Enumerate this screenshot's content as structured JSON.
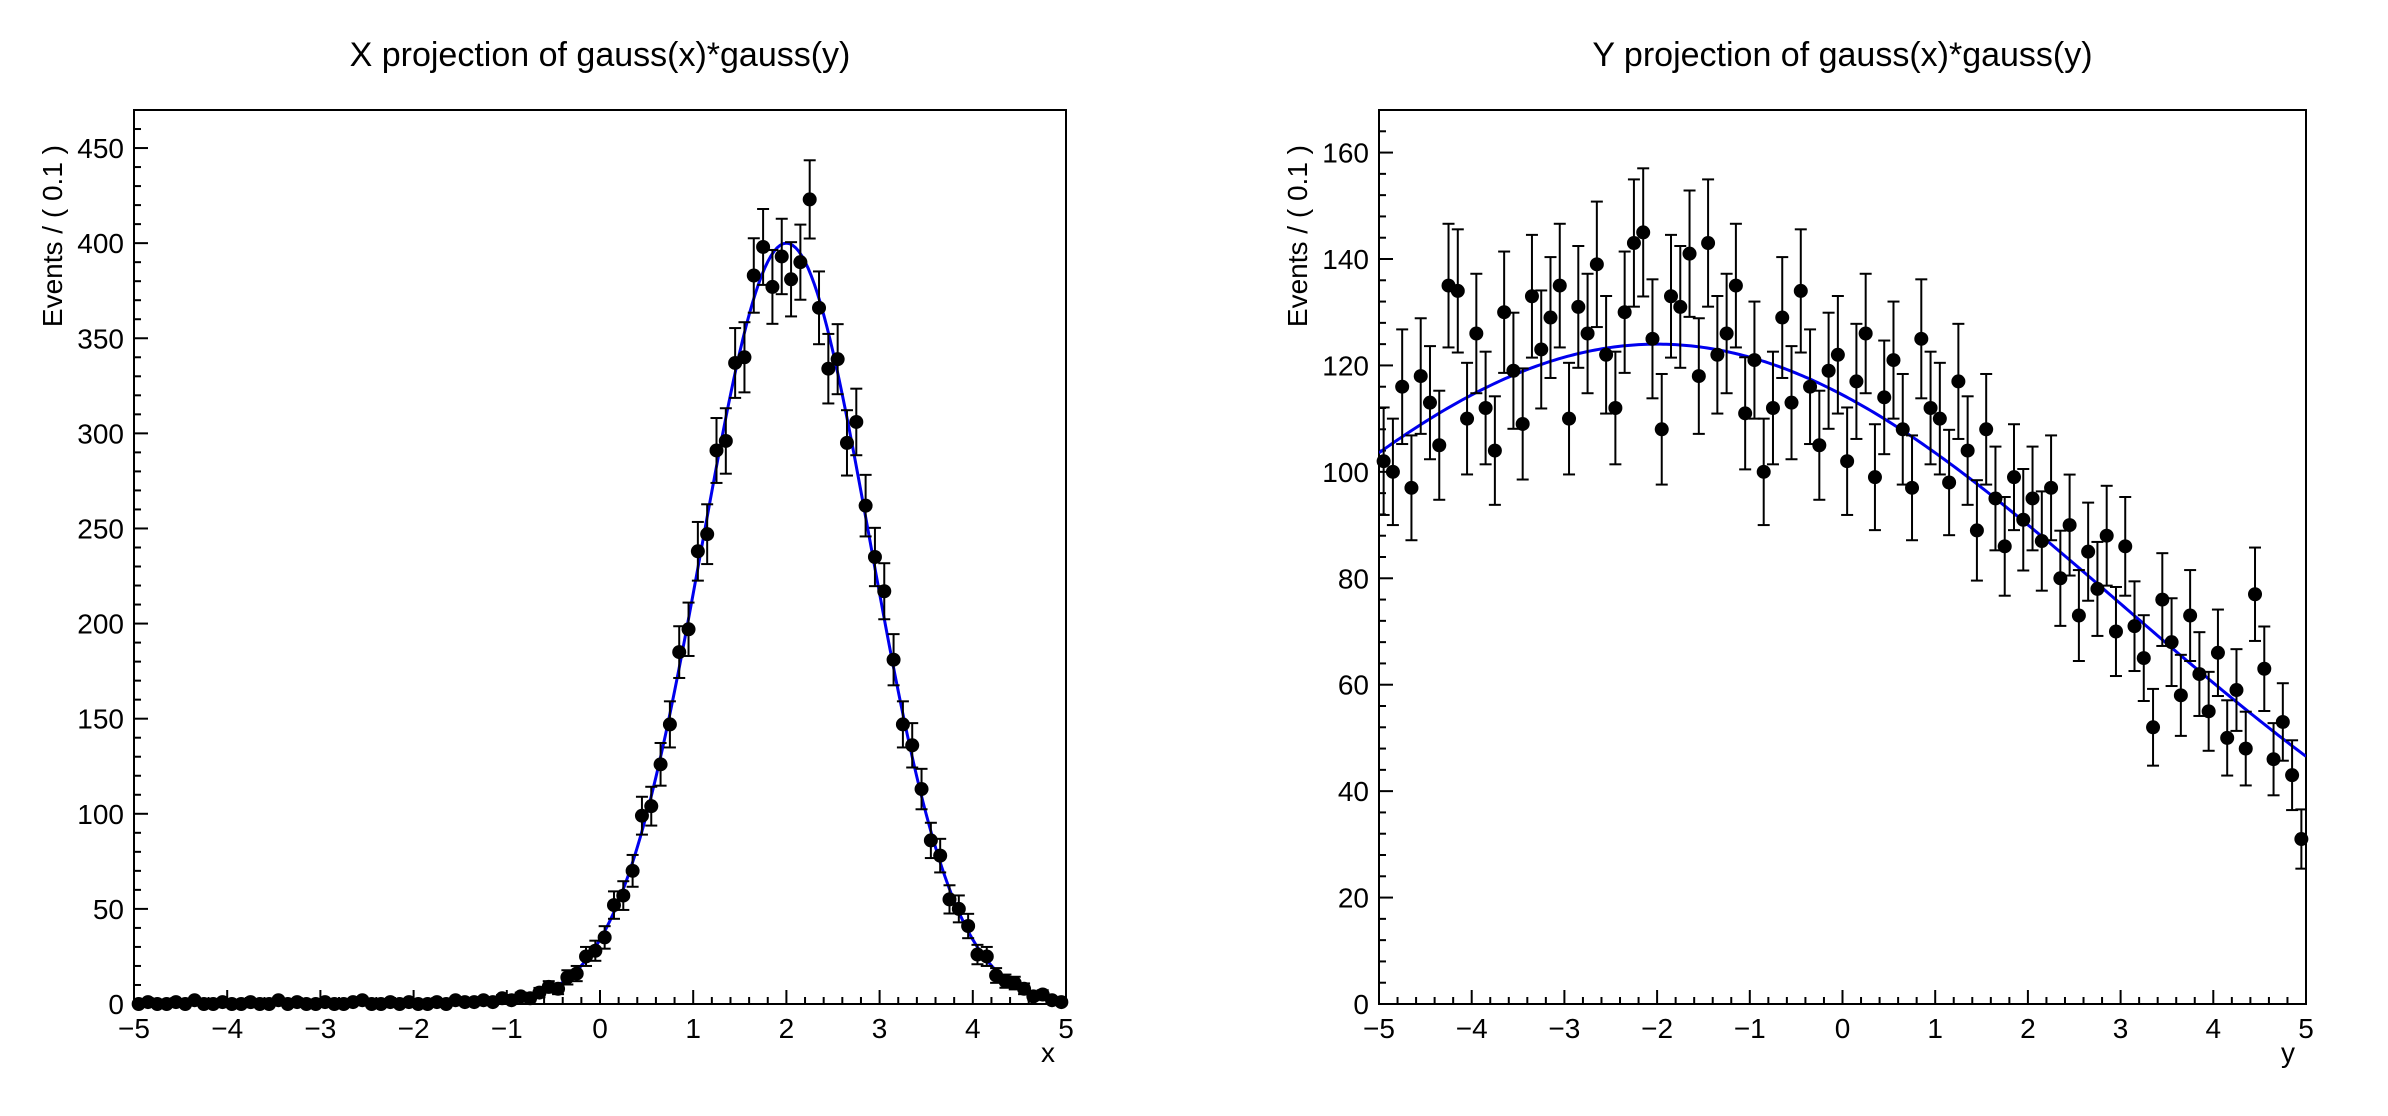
{
  "page": {
    "background": "#ffffff"
  },
  "chart_data": [
    {
      "type": "scatter",
      "title": "X projection of gauss(x)*gauss(y)",
      "xlabel": "x",
      "ylabel": "Events / ( 0.1 )",
      "xlim": [
        -5,
        5
      ],
      "ylim": [
        0,
        470
      ],
      "grid": false,
      "legend": "none",
      "x_major_ticks": [
        -5,
        -4,
        -3,
        -2,
        -1,
        0,
        1,
        2,
        3,
        4,
        5
      ],
      "x_tick_labels": [
        "−5",
        "−4",
        "−3",
        "−2",
        "−1",
        "0",
        "1",
        "2",
        "3",
        "4",
        "5"
      ],
      "y_major_ticks": [
        0,
        50,
        100,
        150,
        200,
        250,
        300,
        350,
        400,
        450
      ],
      "y_tick_labels": [
        "0",
        "50",
        "100",
        "150",
        "200",
        "250",
        "300",
        "350",
        "400",
        "450"
      ],
      "x_minor_divisions": 5,
      "y_minor_divisions": 5,
      "bin_width": 0.1,
      "error_bars": "poisson-sqrt",
      "marker_color": "#000000",
      "curve_color": "#0000ee",
      "points": {
        "x_start": -4.95,
        "x_step": 0.1,
        "values": [
          0,
          1,
          0,
          0,
          1,
          0,
          2,
          0,
          0,
          1,
          0,
          0,
          1,
          0,
          0,
          2,
          0,
          1,
          0,
          0,
          1,
          0,
          0,
          1,
          2,
          0,
          0,
          1,
          0,
          1,
          0,
          0,
          1,
          0,
          2,
          1,
          1,
          2,
          1,
          3,
          2,
          4,
          3,
          6,
          9,
          8,
          14,
          16,
          25,
          28,
          35,
          52,
          57,
          70,
          99,
          104,
          126,
          147,
          185,
          197,
          238,
          247,
          291,
          296,
          337,
          340,
          383,
          398,
          377,
          393,
          381,
          390,
          423,
          366,
          334,
          339,
          295,
          306,
          262,
          235,
          217,
          181,
          147,
          136,
          113,
          86,
          78,
          55,
          50,
          41,
          26,
          25,
          15,
          12,
          11,
          8,
          4,
          5,
          2,
          1
        ]
      },
      "curve": {
        "shape": "gaussian",
        "mean": 2.0,
        "sigma": 0.9,
        "amplitude": 400
      }
    },
    {
      "type": "scatter",
      "title": "Y projection of gauss(x)*gauss(y)",
      "xlabel": "y",
      "ylabel": "Events / ( 0.1 )",
      "xlim": [
        -5,
        5
      ],
      "ylim": [
        0,
        168
      ],
      "grid": false,
      "legend": "none",
      "x_major_ticks": [
        -5,
        -4,
        -3,
        -2,
        -1,
        0,
        1,
        2,
        3,
        4,
        5
      ],
      "x_tick_labels": [
        "−5",
        "−4",
        "−3",
        "−2",
        "−1",
        "0",
        "1",
        "2",
        "3",
        "4",
        "5"
      ],
      "y_major_ticks": [
        0,
        20,
        40,
        60,
        80,
        100,
        120,
        140,
        160
      ],
      "y_tick_labels": [
        "0",
        "20",
        "40",
        "60",
        "80",
        "100",
        "120",
        "140",
        "160"
      ],
      "x_minor_divisions": 5,
      "y_minor_divisions": 5,
      "bin_width": 0.1,
      "error_bars": "poisson-sqrt",
      "marker_color": "#000000",
      "curve_color": "#0000ee",
      "points": {
        "x_start": -4.95,
        "x_step": 0.1,
        "values": [
          102,
          100,
          116,
          97,
          118,
          113,
          105,
          135,
          134,
          110,
          126,
          112,
          104,
          130,
          119,
          109,
          133,
          123,
          129,
          135,
          110,
          131,
          126,
          139,
          122,
          112,
          130,
          143,
          145,
          125,
          108,
          133,
          131,
          141,
          118,
          143,
          122,
          126,
          135,
          111,
          121,
          100,
          112,
          129,
          113,
          134,
          116,
          105,
          119,
          122,
          102,
          117,
          126,
          99,
          114,
          121,
          108,
          97,
          125,
          112,
          110,
          98,
          117,
          104,
          89,
          108,
          95,
          86,
          99,
          91,
          95,
          87,
          97,
          80,
          90,
          73,
          85,
          78,
          88,
          70,
          86,
          71,
          65,
          52,
          76,
          68,
          58,
          73,
          62,
          55,
          66,
          50,
          59,
          48,
          77,
          63,
          46,
          53,
          43,
          31
        ]
      },
      "curve": {
        "shape": "gaussian",
        "mean": -2.0,
        "sigma": 5.0,
        "amplitude": 124
      }
    }
  ]
}
